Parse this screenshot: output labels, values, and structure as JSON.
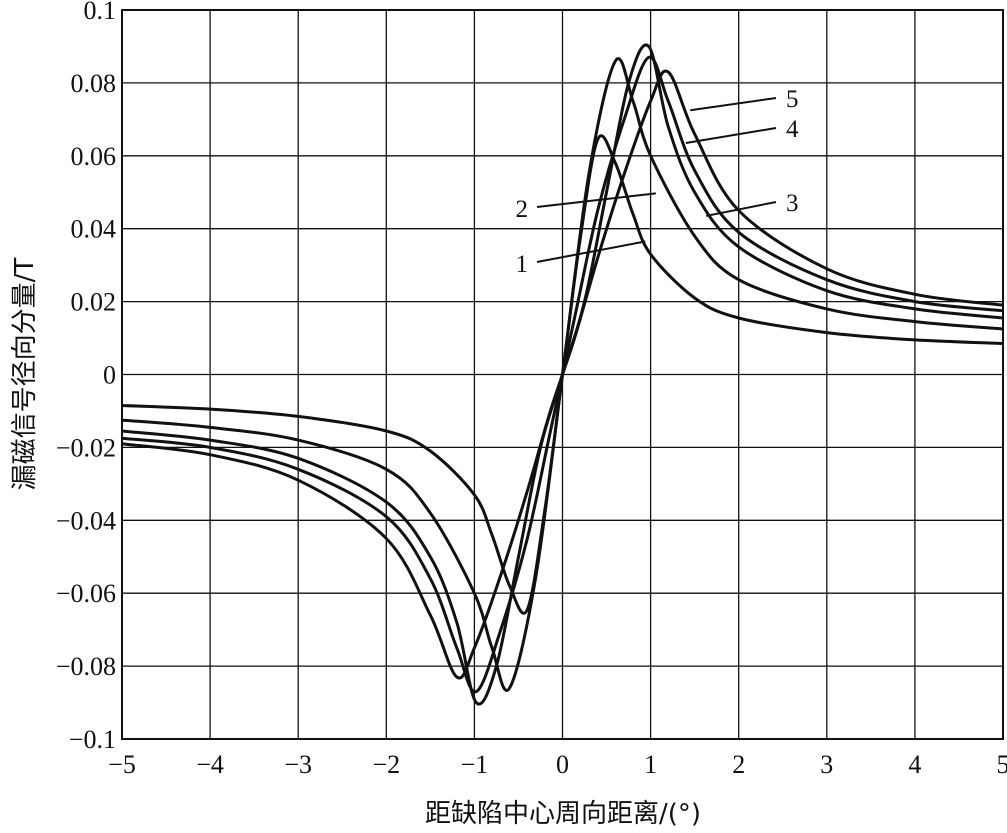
{
  "chart_data": {
    "type": "line",
    "title": "",
    "xlabel": "距缺陷中心周向距离/(°)",
    "ylabel": "漏磁信号径向分量/T",
    "xlim": [
      -5,
      5
    ],
    "ylim": [
      -0.1,
      0.1
    ],
    "grid": true,
    "x_ticks": [
      -5,
      -4,
      -3,
      -2,
      -1,
      0,
      1,
      2,
      3,
      4,
      5
    ],
    "x_tick_labels": [
      "−5",
      "−4",
      "−3",
      "−2",
      "−1",
      "0",
      "1",
      "2",
      "3",
      "4",
      "5"
    ],
    "y_ticks": [
      0.1,
      0.08,
      0.06,
      0.04,
      0.02,
      0,
      -0.02,
      -0.04,
      -0.06,
      -0.08,
      -0.1
    ],
    "y_tick_labels": [
      "0.1",
      "0.08",
      "0.06",
      "0.04",
      "0.02",
      "0",
      "−0.02",
      "−0.04",
      "−0.06",
      "−0.08",
      "−0.1"
    ],
    "series": [
      {
        "name": "1",
        "x": [
          -5,
          -4,
          -3,
          -2,
          -1.5,
          -1,
          -0.8,
          -0.6,
          -0.4,
          -0.2,
          0,
          0.2,
          0.4,
          0.6,
          0.8,
          1,
          1.5,
          2,
          3,
          4,
          5
        ],
        "y": [
          -0.0085,
          -0.0095,
          -0.0115,
          -0.0155,
          -0.021,
          -0.033,
          -0.044,
          -0.058,
          -0.0645,
          -0.037,
          0,
          0.037,
          0.0645,
          0.058,
          0.044,
          0.033,
          0.021,
          0.0155,
          0.0115,
          0.0095,
          0.0085
        ]
      },
      {
        "name": "2",
        "x": [
          -5,
          -4,
          -3,
          -2,
          -1.5,
          -1,
          -0.8,
          -0.6,
          -0.3,
          0,
          0.3,
          0.6,
          0.8,
          1,
          1.5,
          2,
          3,
          4,
          5
        ],
        "y": [
          -0.0125,
          -0.0145,
          -0.018,
          -0.026,
          -0.038,
          -0.06,
          -0.075,
          -0.086,
          -0.055,
          0,
          0.055,
          0.086,
          0.075,
          0.06,
          0.038,
          0.026,
          0.018,
          0.0145,
          0.0125
        ]
      },
      {
        "name": "3",
        "x": [
          -5,
          -4,
          -3,
          -2,
          -1.5,
          -1.2,
          -0.98,
          -0.75,
          -0.5,
          -0.25,
          0,
          0.25,
          0.5,
          0.75,
          0.98,
          1.2,
          1.5,
          2,
          3,
          4,
          5
        ],
        "y": [
          -0.0155,
          -0.018,
          -0.023,
          -0.035,
          -0.05,
          -0.068,
          -0.09,
          -0.08,
          -0.05,
          -0.02,
          0,
          0.02,
          0.05,
          0.08,
          0.09,
          0.068,
          0.05,
          0.035,
          0.023,
          0.018,
          0.0155
        ]
      },
      {
        "name": "4",
        "x": [
          -5,
          -4,
          -3,
          -2,
          -1.5,
          -1.2,
          -0.98,
          -0.7,
          -0.4,
          -0.15,
          0,
          0.15,
          0.4,
          0.7,
          0.98,
          1.2,
          1.5,
          2,
          3,
          4,
          5
        ],
        "y": [
          -0.0175,
          -0.02,
          -0.026,
          -0.039,
          -0.056,
          -0.075,
          -0.087,
          -0.07,
          -0.045,
          -0.017,
          0,
          0.017,
          0.045,
          0.07,
          0.087,
          0.075,
          0.056,
          0.039,
          0.026,
          0.02,
          0.0175
        ]
      },
      {
        "name": "5",
        "x": [
          -5,
          -4,
          -3,
          -2,
          -1.5,
          -1.2,
          -1,
          -0.7,
          -0.4,
          -0.15,
          0,
          0.15,
          0.4,
          0.7,
          1,
          1.2,
          1.5,
          2,
          3,
          4,
          5
        ],
        "y": [
          -0.019,
          -0.022,
          -0.029,
          -0.045,
          -0.066,
          -0.083,
          -0.075,
          -0.055,
          -0.032,
          -0.011,
          0,
          0.011,
          0.032,
          0.055,
          0.075,
          0.083,
          0.066,
          0.045,
          0.029,
          0.022,
          0.019
        ]
      }
    ]
  }
}
